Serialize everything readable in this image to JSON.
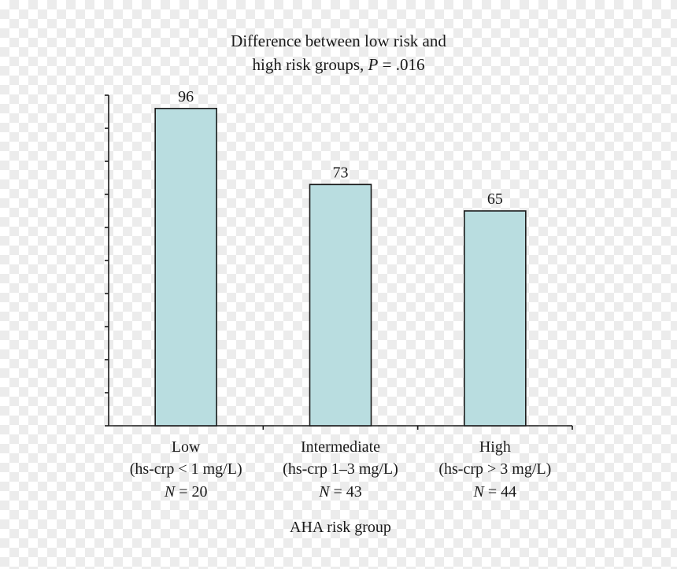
{
  "chart_data": {
    "type": "bar",
    "title_lines": [
      "Difference between low risk and",
      "high risk groups, "
    ],
    "title_p_label": "P",
    "title_p_value": " = .016",
    "xlabel": "AHA risk group",
    "ylabel": "",
    "ylim": [
      0,
      100
    ],
    "y_ticks": [
      0,
      10,
      20,
      30,
      40,
      50,
      60,
      70,
      80,
      90,
      100
    ],
    "grid": false,
    "categories": [
      {
        "name": "Low",
        "detail": "(hs-crp < 1 mg/L)",
        "n_label": "N",
        "n_value": " = 20"
      },
      {
        "name": "Intermediate",
        "detail": "(hs-crp 1–3 mg/L)",
        "n_label": "N",
        "n_value": " = 43"
      },
      {
        "name": "High",
        "detail": "(hs-crp > 3 mg/L)",
        "n_label": "N",
        "n_value": " = 44"
      }
    ],
    "values": [
      96,
      73,
      65
    ],
    "value_labels": [
      "96",
      "73",
      "65"
    ],
    "colors": {
      "bar_fill": "#b9dde0",
      "bar_stroke": "#1a1a1a",
      "axis": "#1a1a1a",
      "text": "#1a1a1a"
    }
  }
}
